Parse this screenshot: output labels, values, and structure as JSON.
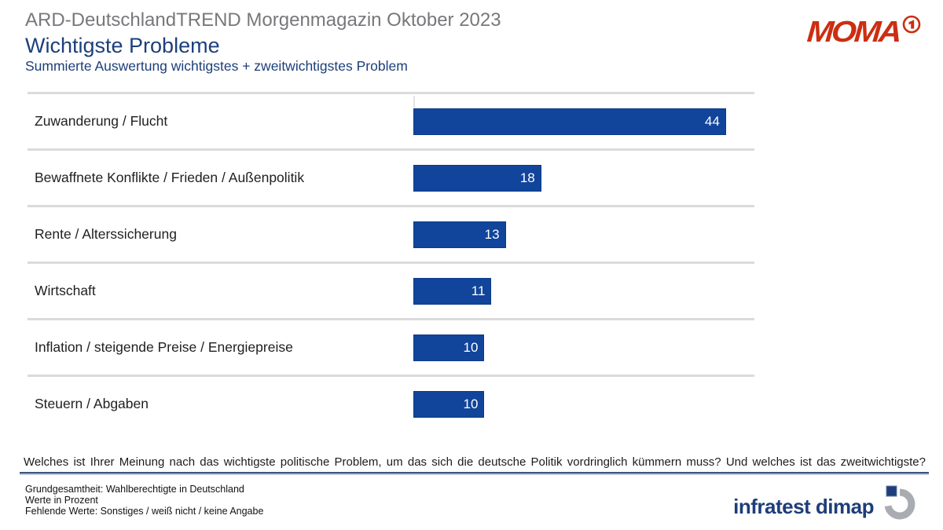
{
  "header": {
    "kicker": "ARD-DeutschlandTREND Morgenmagazin Oktober 2023",
    "title": "Wichtigste Probleme",
    "subtitle": "Summierte Auswertung wichtigstes + zweitwichtigstes Problem"
  },
  "moma_logo": {
    "text": "MOMA",
    "ard_one": "1",
    "color": "#cc2e11"
  },
  "chart_data": {
    "type": "bar",
    "orientation": "horizontal",
    "categories": [
      "Zuwanderung / Flucht",
      "Bewaffnete Konflikte / Frieden / Außenpolitik",
      "Rente / Alterssicherung",
      "Wirtschaft",
      "Inflation / steigende Preise / Energiepreise",
      "Steuern / Abgaben"
    ],
    "values": [
      44,
      18,
      13,
      11,
      10,
      10
    ],
    "value_unit": "percent",
    "xlim": [
      0,
      48
    ],
    "bar_color": "#11459b",
    "value_label_color": "#ffffff",
    "grid": "row-separators",
    "legend": "none",
    "title": "Wichtigste Probleme",
    "xlabel": "",
    "ylabel": ""
  },
  "question": {
    "text": "Welches ist Ihrer Meinung nach das wichtigste politische Problem, um das sich die deutsche Politik vordringlich kümmern muss? Und welches ist das zweitwichtigste?"
  },
  "footnotes": [
    "Grundgesamtheit: Wahlberechtigte in Deutschland",
    "Werte in Prozent",
    "Fehlende Werte: Sonstiges / weiß nicht / keine Angabe"
  ],
  "source": {
    "name": "infratest dimap"
  }
}
